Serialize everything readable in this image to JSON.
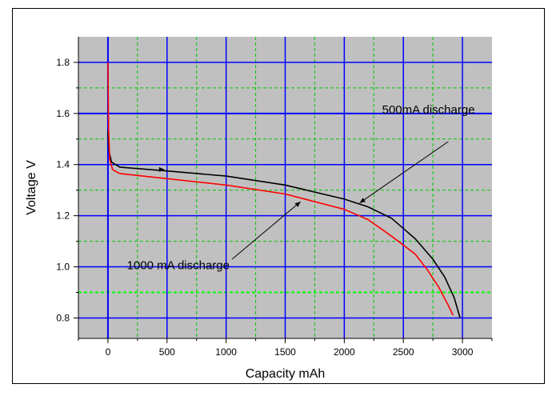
{
  "chart_data": {
    "type": "line",
    "title": "",
    "xlabel": "Capacity mAh",
    "ylabel": "Voltage V",
    "xlim": [
      -250,
      3250
    ],
    "ylim": [
      0.72,
      1.9
    ],
    "x_ticks": [
      0,
      500,
      1000,
      1500,
      2000,
      2500,
      3000
    ],
    "x_minor_ticks": [
      -250,
      250,
      750,
      1250,
      1750,
      2250,
      2750,
      3250
    ],
    "y_ticks": [
      0.8,
      1.0,
      1.2,
      1.4,
      1.6,
      1.8
    ],
    "y_tick_labels": [
      "0.8",
      "1.0",
      "1.2",
      "1.4",
      "1.6",
      "1.8"
    ],
    "y_minor_ticks": [
      0.9,
      1.1,
      1.3,
      1.5,
      1.7
    ],
    "grid": true,
    "colors": {
      "plot_background": "#c0c0c0",
      "major_grid": "#0000ff",
      "minor_grid": "#00c800",
      "special_minor_line": "#00ff00",
      "series_500": "#000000",
      "series_1000": "#ff0000",
      "zero_line": "#0000ff"
    },
    "series": [
      {
        "name": "500mA discharge",
        "color": "#000000",
        "points": [
          [
            0,
            1.53
          ],
          [
            10,
            1.45
          ],
          [
            30,
            1.41
          ],
          [
            100,
            1.39
          ],
          [
            500,
            1.375
          ],
          [
            1000,
            1.355
          ],
          [
            1500,
            1.32
          ],
          [
            2000,
            1.265
          ],
          [
            2200,
            1.235
          ],
          [
            2400,
            1.19
          ],
          [
            2600,
            1.11
          ],
          [
            2750,
            1.03
          ],
          [
            2850,
            0.96
          ],
          [
            2930,
            0.88
          ],
          [
            2980,
            0.8
          ]
        ]
      },
      {
        "name": "1000 mA discharge",
        "color": "#ff0000",
        "points": [
          [
            0,
            1.8
          ],
          [
            5,
            1.55
          ],
          [
            15,
            1.42
          ],
          [
            40,
            1.38
          ],
          [
            100,
            1.365
          ],
          [
            500,
            1.345
          ],
          [
            1000,
            1.32
          ],
          [
            1500,
            1.285
          ],
          [
            2000,
            1.225
          ],
          [
            2200,
            1.185
          ],
          [
            2400,
            1.12
          ],
          [
            2600,
            1.05
          ],
          [
            2700,
            0.99
          ],
          [
            2800,
            0.92
          ],
          [
            2880,
            0.85
          ],
          [
            2920,
            0.81
          ]
        ]
      }
    ],
    "annotations": [
      {
        "text": "500mA discharge",
        "x": 2320,
        "y": 1.6,
        "arrow_from": [
          2880,
          1.49
        ],
        "arrow_to": [
          2130,
          1.25
        ]
      },
      {
        "text": "1000 mA discharge",
        "x": 160,
        "y": 0.99,
        "arrow_from": [
          1050,
          1.03
        ],
        "arrow_to": [
          1630,
          1.255
        ]
      }
    ]
  }
}
